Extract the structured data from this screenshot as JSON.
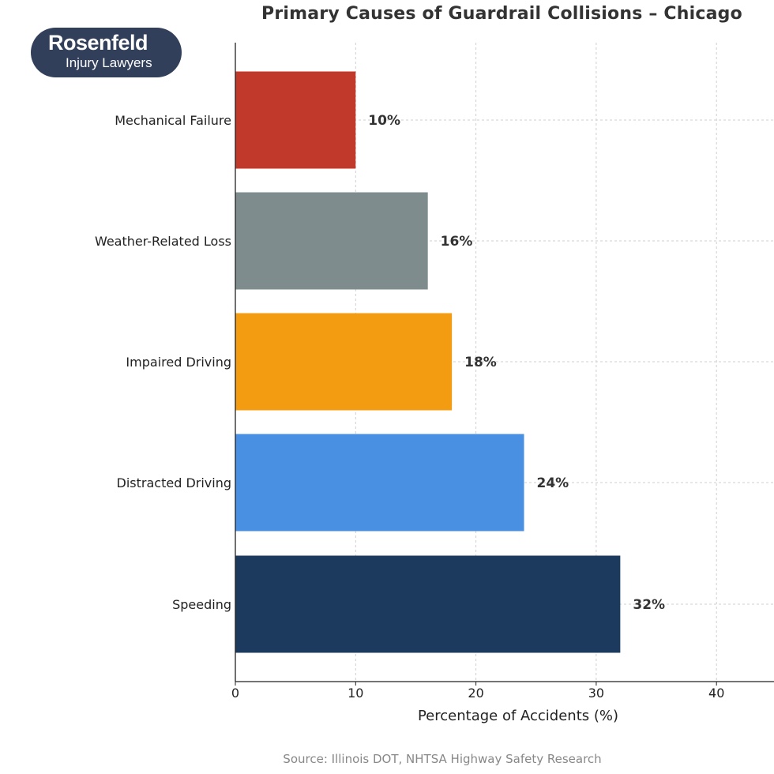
{
  "logo": {
    "name": "Rosenfeld",
    "tagline": "Injury Lawyers"
  },
  "source": "Source: Illinois DOT, NHTSA Highway Safety Research",
  "chart_data": {
    "type": "bar",
    "orientation": "horizontal",
    "title": "Primary Causes of Guardrail Collisions – Chicago",
    "xlabel": "Percentage of Accidents (%)",
    "ylabel": "",
    "xlim": [
      0,
      45
    ],
    "xticks": [
      0,
      10,
      20,
      30,
      40
    ],
    "grid": true,
    "categories": [
      "Mechanical Failure",
      "Weather-Related Loss",
      "Impaired Driving",
      "Distracted Driving",
      "Speeding"
    ],
    "values": [
      10,
      16,
      18,
      24,
      32
    ],
    "value_labels": [
      "10%",
      "16%",
      "18%",
      "24%",
      "32%"
    ],
    "colors": [
      "#c0392b",
      "#7f8c8d",
      "#f39c12",
      "#4a90e2",
      "#1c3a5e"
    ]
  }
}
